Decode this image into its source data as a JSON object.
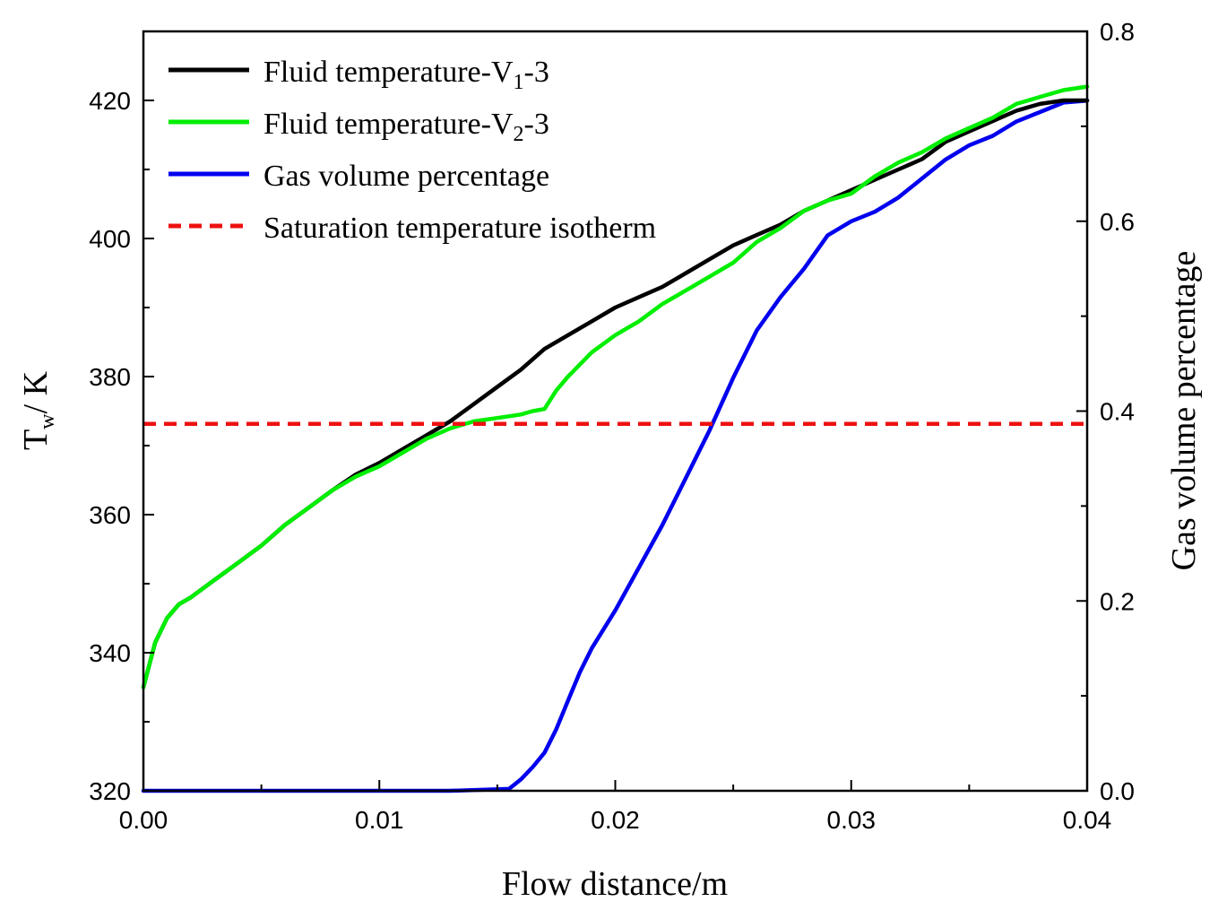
{
  "chart_data": {
    "type": "line",
    "xlabel": "Flow distance/m",
    "ylabel_left": {
      "main": "T",
      "sub": "w",
      "rest": "/ K"
    },
    "ylabel_right": "Gas volume percentage",
    "xlim": [
      0.0,
      0.04
    ],
    "ylim_left": [
      320,
      430
    ],
    "ylim_right": [
      0.0,
      0.8
    ],
    "xticks": [
      0.0,
      0.01,
      0.02,
      0.03,
      0.04
    ],
    "xtick_labels": [
      "0.00",
      "0.01",
      "0.02",
      "0.03",
      "0.04"
    ],
    "yticks_left": [
      320,
      340,
      360,
      380,
      400,
      420
    ],
    "ytick_labels_left": [
      "320",
      "340",
      "360",
      "380",
      "400",
      "420"
    ],
    "yticks_right": [
      0.0,
      0.2,
      0.4,
      0.6,
      0.8
    ],
    "ytick_labels_right": [
      "0.0",
      "0.2",
      "0.4",
      "0.6",
      "0.8"
    ],
    "grid": false,
    "legend_placement": "top-left",
    "series": [
      {
        "name": "Fluid temperature-V1-3",
        "label_parts": [
          "Fluid temperature-V",
          "1",
          "-3"
        ],
        "color": "#000000",
        "axis": "left",
        "dash": "solid",
        "x": [
          0.0,
          0.0005,
          0.001,
          0.0015,
          0.002,
          0.003,
          0.004,
          0.005,
          0.006,
          0.007,
          0.008,
          0.009,
          0.01,
          0.011,
          0.012,
          0.013,
          0.014,
          0.015,
          0.016,
          0.017,
          0.018,
          0.019,
          0.02,
          0.021,
          0.022,
          0.023,
          0.024,
          0.025,
          0.026,
          0.027,
          0.028,
          0.029,
          0.03,
          0.031,
          0.032,
          0.033,
          0.034,
          0.035,
          0.036,
          0.037,
          0.038,
          0.039,
          0.04
        ],
        "values": [
          335.0,
          341.5,
          345.0,
          347.0,
          348.0,
          350.5,
          353.0,
          355.5,
          358.5,
          361.0,
          363.5,
          365.8,
          367.5,
          369.5,
          371.5,
          373.5,
          376.0,
          378.5,
          381.0,
          384.0,
          386.0,
          388.0,
          390.0,
          391.5,
          393.0,
          395.0,
          397.0,
          399.0,
          400.5,
          402.0,
          404.0,
          405.5,
          407.0,
          408.5,
          410.0,
          411.5,
          414.0,
          415.5,
          417.0,
          418.5,
          419.5,
          420.0,
          420.0
        ]
      },
      {
        "name": "Fluid temperature-V2-3",
        "label_parts": [
          "Fluid temperature-V",
          "2",
          "-3"
        ],
        "color": "#00ee00",
        "axis": "left",
        "dash": "solid",
        "x": [
          0.0,
          0.0005,
          0.001,
          0.0015,
          0.002,
          0.003,
          0.004,
          0.005,
          0.006,
          0.007,
          0.008,
          0.009,
          0.01,
          0.011,
          0.012,
          0.013,
          0.014,
          0.015,
          0.016,
          0.0165,
          0.017,
          0.0175,
          0.018,
          0.019,
          0.02,
          0.021,
          0.022,
          0.023,
          0.024,
          0.025,
          0.026,
          0.027,
          0.028,
          0.029,
          0.03,
          0.031,
          0.032,
          0.033,
          0.034,
          0.035,
          0.036,
          0.037,
          0.038,
          0.039,
          0.04
        ],
        "values": [
          335.0,
          341.5,
          345.0,
          347.0,
          348.0,
          350.5,
          353.0,
          355.5,
          358.5,
          361.0,
          363.5,
          365.5,
          367.0,
          369.0,
          371.0,
          372.5,
          373.5,
          374.0,
          374.5,
          375.0,
          375.3,
          378.0,
          380.0,
          383.5,
          386.0,
          388.0,
          390.5,
          392.5,
          394.5,
          396.5,
          399.5,
          401.5,
          404.0,
          405.5,
          406.5,
          409.0,
          411.0,
          412.5,
          414.5,
          416.0,
          417.5,
          419.5,
          420.5,
          421.5,
          422.0
        ]
      },
      {
        "name": "Gas volume percentage",
        "label_parts": [
          "Gas volume percentage",
          "",
          ""
        ],
        "color": "#0000ee",
        "axis": "right",
        "dash": "solid",
        "x": [
          0.0,
          0.013,
          0.0155,
          0.016,
          0.0165,
          0.017,
          0.0175,
          0.018,
          0.0185,
          0.019,
          0.02,
          0.021,
          0.022,
          0.023,
          0.024,
          0.025,
          0.026,
          0.027,
          0.028,
          0.029,
          0.03,
          0.031,
          0.032,
          0.033,
          0.034,
          0.035,
          0.036,
          0.037,
          0.038,
          0.039,
          0.04
        ],
        "values": [
          0.0,
          0.0,
          0.002,
          0.012,
          0.025,
          0.04,
          0.065,
          0.095,
          0.125,
          0.15,
          0.19,
          0.235,
          0.28,
          0.33,
          0.38,
          0.435,
          0.485,
          0.52,
          0.55,
          0.585,
          0.6,
          0.61,
          0.625,
          0.645,
          0.665,
          0.68,
          0.69,
          0.705,
          0.715,
          0.725,
          0.727
        ]
      },
      {
        "name": "Saturation temperature isotherm",
        "label_parts": [
          "Saturation temperature isotherm",
          "",
          ""
        ],
        "color": "#ee1111",
        "axis": "left",
        "dash": "dashed",
        "x": [
          0.0,
          0.04
        ],
        "values": [
          373.15,
          373.15
        ]
      }
    ]
  }
}
